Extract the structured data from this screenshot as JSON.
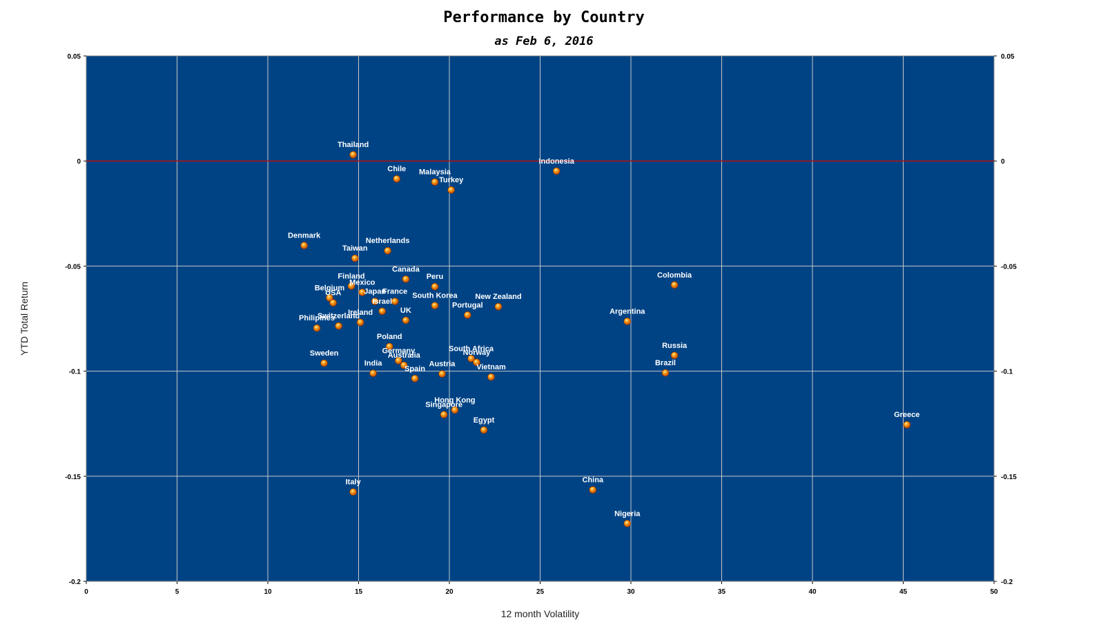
{
  "chart_data": {
    "type": "scatter",
    "title": "Performance by Country",
    "subtitle": "as Feb 6, 2016",
    "xlabel": "12 month Volatility",
    "ylabel": "YTD Total Return",
    "xlim": [
      0,
      50
    ],
    "ylim": [
      -0.2,
      0.05
    ],
    "xticks": [
      "0",
      "5",
      "10",
      "15",
      "20",
      "25",
      "30",
      "35",
      "40",
      "45",
      "50"
    ],
    "yticks": [
      "0.05",
      "0",
      "-0.05",
      "-0.1",
      "-0.15",
      "-0.2"
    ],
    "ytick_values": [
      0.05,
      0,
      -0.05,
      -0.1,
      -0.15,
      -0.2
    ],
    "xtick_values": [
      0,
      5,
      10,
      15,
      20,
      25,
      30,
      35,
      40,
      45,
      50
    ],
    "grid": true,
    "reference_line_y": 0,
    "colors": {
      "plot_bg": "#004385",
      "grid": "#c8c8c8",
      "zero_line": "#b01010",
      "marker": "#f08a18",
      "label": "#ffffff"
    },
    "points": [
      {
        "label": "Thailand",
        "x": 14.7,
        "y": 0.003
      },
      {
        "label": "Chile",
        "x": 17.1,
        "y": -0.0085
      },
      {
        "label": "Malaysia",
        "x": 19.2,
        "y": -0.01
      },
      {
        "label": "Turkey",
        "x": 20.1,
        "y": -0.0138
      },
      {
        "label": "Indonesia",
        "x": 25.9,
        "y": -0.0048
      },
      {
        "label": "Denmark",
        "x": 12.0,
        "y": -0.0402
      },
      {
        "label": "Netherlands",
        "x": 16.6,
        "y": -0.0427
      },
      {
        "label": "Taiwan",
        "x": 14.8,
        "y": -0.0463
      },
      {
        "label": "Canada",
        "x": 17.6,
        "y": -0.0562
      },
      {
        "label": "Peru",
        "x": 19.2,
        "y": -0.0598
      },
      {
        "label": "Finland",
        "x": 14.6,
        "y": -0.0595
      },
      {
        "label": "Mexico",
        "x": 15.2,
        "y": -0.0625
      },
      {
        "label": "Belgium",
        "x": 13.4,
        "y": -0.0651
      },
      {
        "label": "USA",
        "x": 13.6,
        "y": -0.0675
      },
      {
        "label": "Japan",
        "x": 15.9,
        "y": -0.0668
      },
      {
        "label": "France",
        "x": 17.0,
        "y": -0.0668
      },
      {
        "label": "South Korea",
        "x": 19.2,
        "y": -0.0688
      },
      {
        "label": "New Zealand",
        "x": 22.7,
        "y": -0.0693
      },
      {
        "label": "Israel",
        "x": 16.3,
        "y": -0.0715
      },
      {
        "label": "Portugal",
        "x": 21.0,
        "y": -0.0733
      },
      {
        "label": "UK",
        "x": 17.6,
        "y": -0.0758
      },
      {
        "label": "Ireland",
        "x": 15.1,
        "y": -0.0768
      },
      {
        "label": "Switzerland",
        "x": 13.9,
        "y": -0.0785
      },
      {
        "label": "Philipines",
        "x": 12.7,
        "y": -0.0795
      },
      {
        "label": "Colombia",
        "x": 32.4,
        "y": -0.059
      },
      {
        "label": "Argentina",
        "x": 29.8,
        "y": -0.0763
      },
      {
        "label": "Poland",
        "x": 16.7,
        "y": -0.0883
      },
      {
        "label": "Germany",
        "x": 17.2,
        "y": -0.095
      },
      {
        "label": "Australia",
        "x": 17.5,
        "y": -0.0972
      },
      {
        "label": "Sweden",
        "x": 13.1,
        "y": -0.0962
      },
      {
        "label": "India",
        "x": 15.8,
        "y": -0.101
      },
      {
        "label": "Spain",
        "x": 18.1,
        "y": -0.1035
      },
      {
        "label": "Austria",
        "x": 19.6,
        "y": -0.1013
      },
      {
        "label": "South Africa",
        "x": 21.2,
        "y": -0.094
      },
      {
        "label": "Norway",
        "x": 21.5,
        "y": -0.0958
      },
      {
        "label": "Vietnam",
        "x": 22.3,
        "y": -0.1028
      },
      {
        "label": "Russia",
        "x": 32.4,
        "y": -0.0925
      },
      {
        "label": "Brazil",
        "x": 31.9,
        "y": -0.1008
      },
      {
        "label": "Hong Kong",
        "x": 20.3,
        "y": -0.1185
      },
      {
        "label": "Singapore",
        "x": 19.7,
        "y": -0.1207
      },
      {
        "label": "Egypt",
        "x": 21.9,
        "y": -0.128
      },
      {
        "label": "Greece",
        "x": 45.2,
        "y": -0.1255
      },
      {
        "label": "Italy",
        "x": 14.7,
        "y": -0.1575
      },
      {
        "label": "China",
        "x": 27.9,
        "y": -0.1565
      },
      {
        "label": "Nigeria",
        "x": 29.8,
        "y": -0.1725
      }
    ]
  }
}
